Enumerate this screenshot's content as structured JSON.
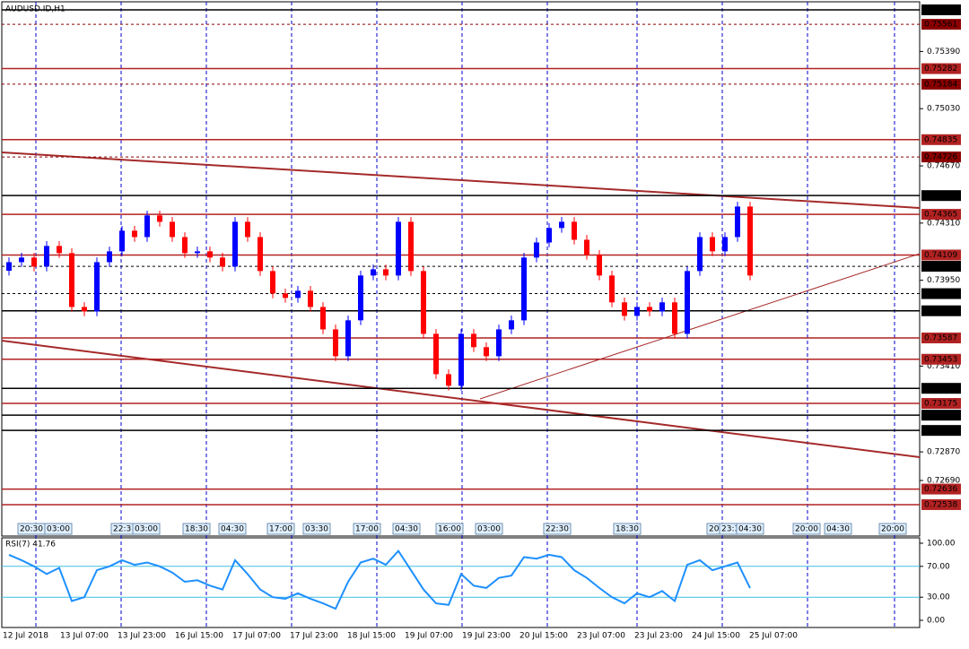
{
  "chart_data": {
    "type": "candlestick",
    "title": "AUDUSD.ID,H1",
    "up_color": "#0000ff",
    "down_color": "#ff0000",
    "ylim": [
      0.7247,
      0.75697
    ],
    "yticks": [
      {
        "value": 0.7539,
        "label": "0.75390"
      },
      {
        "value": 0.7503,
        "label": "0.75030"
      },
      {
        "value": 0.7467,
        "label": "0.74670"
      },
      {
        "value": 0.7431,
        "label": "0.74310"
      },
      {
        "value": 0.7395,
        "label": "0.73950"
      },
      {
        "value": 0.7341,
        "label": "0.73410"
      },
      {
        "value": 0.7287,
        "label": "0.72870"
      },
      {
        "value": 0.7269,
        "label": "0.72690"
      }
    ],
    "levels": [
      {
        "price": 0.75652,
        "label": "0.75652",
        "color": "#000000",
        "dashed": false
      },
      {
        "price": 0.75561,
        "label": "0.75561",
        "color": "#8b0000",
        "dashed": true
      },
      {
        "price": 0.75282,
        "label": "0.75282",
        "color": "#b22222",
        "dashed": false
      },
      {
        "price": 0.75184,
        "label": "0.75184",
        "color": "#8b0000",
        "dashed": true
      },
      {
        "price": 0.74835,
        "label": "0.74835",
        "color": "#b22222",
        "dashed": false
      },
      {
        "price": 0.74726,
        "label": "0.74726",
        "color": "#8b0000",
        "dashed": true
      },
      {
        "price": 0.74483,
        "label": "0.74483",
        "color": "#000000",
        "dashed": false
      },
      {
        "price": 0.74365,
        "label": "0.74365",
        "color": "#b22222",
        "dashed": false
      },
      {
        "price": 0.74109,
        "label": "0.74109",
        "color": "#b22222",
        "dashed": false
      },
      {
        "price": 0.74038,
        "label": "0.74038",
        "color": "#000000",
        "dashed": true
      },
      {
        "price": 0.73866,
        "label": "0.73866",
        "color": "#000000",
        "dashed": true
      },
      {
        "price": 0.73758,
        "label": "0.73758",
        "color": "#000000",
        "dashed": false
      },
      {
        "price": 0.73587,
        "label": "0.73587",
        "color": "#b22222",
        "dashed": false
      },
      {
        "price": 0.73453,
        "label": "0.73453",
        "color": "#b22222",
        "dashed": false
      },
      {
        "price": 0.7327,
        "label": "0.73270",
        "color": "#000000",
        "dashed": false
      },
      {
        "price": 0.73175,
        "label": "0.73175",
        "color": "#b22222",
        "dashed": false
      },
      {
        "price": 0.73101,
        "label": "0.73101",
        "color": "#000000",
        "dashed": false
      },
      {
        "price": 0.73005,
        "label": "0.73005",
        "color": "#000000",
        "dashed": false
      },
      {
        "price": 0.72636,
        "label": "0.72636",
        "color": "#b22222",
        "dashed": false
      },
      {
        "price": 0.72538,
        "label": "0.72538",
        "color": "#b22222",
        "dashed": false
      }
    ],
    "open": [
      0.7401,
      0.74064,
      0.74093,
      0.74036,
      0.74166,
      0.74121,
      0.73782,
      0.73754,
      0.74064,
      0.74132,
      0.74262,
      0.74222,
      0.74358,
      0.74318,
      0.74222,
      0.74121,
      0.74132,
      0.74093,
      0.74036,
      0.74318,
      0.74222,
      0.74008,
      0.73867,
      0.73839,
      0.73884,
      0.73782,
      0.73641,
      0.73472,
      0.73698,
      0.7398,
      0.74019,
      0.7398,
      0.74318,
      0.74008,
      0.73613,
      0.73359,
      0.73286,
      0.73613,
      0.73529,
      0.73472,
      0.73641,
      0.73698,
      0.74093,
      0.74188,
      0.74279,
      0.74318,
      0.74205,
      0.7411,
      0.7398,
      0.73811,
      0.73726,
      0.73782,
      0.73754,
      0.73811,
      0.73613,
      0.74008,
      0.74222,
      0.74132,
      0.74222,
      0.74414
    ],
    "high": [
      0.74094,
      0.74123,
      0.74123,
      0.74196,
      0.74196,
      0.74151,
      0.73812,
      0.74094,
      0.74162,
      0.74292,
      0.74292,
      0.74388,
      0.74388,
      0.74348,
      0.74252,
      0.74162,
      0.74162,
      0.74123,
      0.74348,
      0.74348,
      0.74252,
      0.74038,
      0.73897,
      0.73914,
      0.73914,
      0.73812,
      0.73671,
      0.73728,
      0.7401,
      0.74049,
      0.74049,
      0.74348,
      0.74348,
      0.74038,
      0.73643,
      0.73389,
      0.73643,
      0.73643,
      0.73559,
      0.73671,
      0.73728,
      0.74123,
      0.74218,
      0.74309,
      0.74348,
      0.74348,
      0.74235,
      0.7414,
      0.7401,
      0.73841,
      0.73812,
      0.73812,
      0.73841,
      0.73841,
      0.74038,
      0.74252,
      0.74252,
      0.74252,
      0.74444,
      0.74444
    ],
    "low": [
      0.7398,
      0.74034,
      0.74006,
      0.74006,
      0.74091,
      0.73752,
      0.73724,
      0.73724,
      0.74034,
      0.74102,
      0.74192,
      0.74192,
      0.74288,
      0.74192,
      0.74091,
      0.74091,
      0.74063,
      0.74006,
      0.74006,
      0.74192,
      0.73978,
      0.73837,
      0.73809,
      0.73809,
      0.73752,
      0.73611,
      0.73442,
      0.73442,
      0.73668,
      0.7395,
      0.7395,
      0.7395,
      0.73978,
      0.73583,
      0.73329,
      0.73256,
      0.73256,
      0.73499,
      0.73442,
      0.73442,
      0.73611,
      0.73668,
      0.74063,
      0.74158,
      0.74249,
      0.74175,
      0.7408,
      0.7395,
      0.73781,
      0.73696,
      0.73696,
      0.73724,
      0.73724,
      0.73583,
      0.73583,
      0.73978,
      0.74102,
      0.74102,
      0.74192,
      0.7395
    ],
    "close": [
      0.74064,
      0.74093,
      0.74036,
      0.74166,
      0.74121,
      0.73782,
      0.73754,
      0.74064,
      0.74132,
      0.74262,
      0.74222,
      0.74358,
      0.74318,
      0.74222,
      0.74121,
      0.74132,
      0.74093,
      0.74036,
      0.74318,
      0.74222,
      0.74008,
      0.73867,
      0.73839,
      0.73884,
      0.73782,
      0.73641,
      0.73472,
      0.73698,
      0.7398,
      0.74019,
      0.7398,
      0.74318,
      0.74008,
      0.73613,
      0.73359,
      0.73286,
      0.73613,
      0.73529,
      0.73472,
      0.73641,
      0.73698,
      0.74093,
      0.74188,
      0.74279,
      0.74318,
      0.74205,
      0.7411,
      0.7398,
      0.73811,
      0.73726,
      0.73782,
      0.73754,
      0.73811,
      0.73613,
      0.74008,
      0.74222,
      0.74132,
      0.74222,
      0.74414,
      0.7398
    ],
    "time_labels": [
      "12 Jul 2018",
      "13 Jul 07:00",
      "13 Jul 23:00",
      "16 Jul 15:00",
      "17 Jul 07:00",
      "17 Jul 23:00",
      "18 Jul 15:00",
      "19 Jul 07:00",
      "19 Jul 23:00",
      "20 Jul 15:00",
      "23 Jul 07:00",
      "23 Jul 23:00",
      "24 Jul 15:00",
      "25 Jul 07:00"
    ],
    "session_labels": [
      "20:30",
      "03:00",
      "22:3",
      "03:00",
      "18:30",
      "04:30",
      "17:00",
      "03:30",
      "17:00",
      "04:30",
      "16:00",
      "03:00",
      "22:30",
      "18:30",
      "20",
      "23:3",
      "04:30",
      "20:00",
      "04:30",
      "20:00"
    ],
    "rsi": {
      "title": "RSI(7) 41.76",
      "color": "#1e90ff",
      "ylim": [
        0,
        100
      ],
      "yticks": [
        {
          "value": 100,
          "label": "100.00"
        },
        {
          "value": 70,
          "label": "70.00"
        },
        {
          "value": 30,
          "label": "30.00"
        },
        {
          "value": 0,
          "label": "0.00"
        }
      ],
      "levels": [
        70,
        30
      ],
      "values": [
        85,
        78,
        70,
        60,
        68,
        25,
        30,
        65,
        70,
        78,
        72,
        75,
        70,
        62,
        50,
        52,
        45,
        40,
        78,
        60,
        40,
        30,
        28,
        35,
        28,
        22,
        15,
        50,
        75,
        80,
        72,
        90,
        65,
        40,
        22,
        20,
        60,
        45,
        42,
        55,
        58,
        82,
        80,
        85,
        82,
        65,
        55,
        42,
        30,
        22,
        35,
        30,
        38,
        25,
        72,
        78,
        65,
        70,
        75,
        41.76
      ]
    }
  }
}
